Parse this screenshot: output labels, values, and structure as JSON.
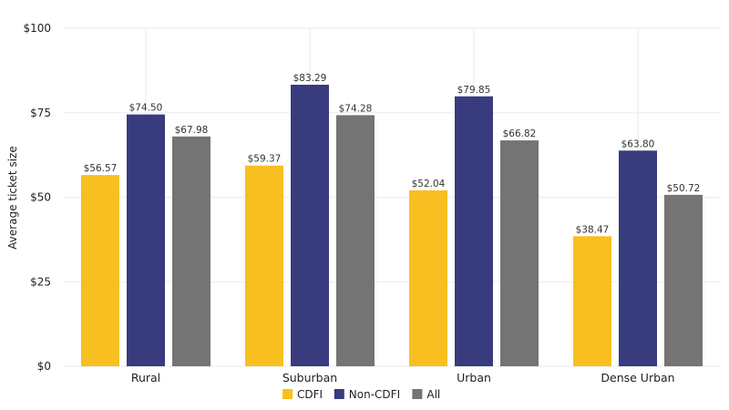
{
  "chart_data": {
    "type": "bar",
    "title": "",
    "xlabel": "",
    "ylabel": "Average ticket size",
    "categories": [
      "Rural",
      "Suburban",
      "Urban",
      "Dense Urban"
    ],
    "series": [
      {
        "name": "CDFI",
        "color": "#f8bf21",
        "values": [
          56.57,
          59.37,
          52.04,
          38.47
        ],
        "labels": [
          "$56.57",
          "$59.37",
          "$52.04",
          "$38.47"
        ]
      },
      {
        "name": "Non-CDFI",
        "color": "#383b7e",
        "values": [
          74.5,
          83.29,
          79.85,
          63.8
        ],
        "labels": [
          "$74.50",
          "$83.29",
          "$79.85",
          "$63.80"
        ]
      },
      {
        "name": "All",
        "color": "#747474",
        "values": [
          67.98,
          74.28,
          66.82,
          50.72
        ],
        "labels": [
          "$67.98",
          "$74.28",
          "$66.82",
          "$50.72"
        ]
      }
    ],
    "ylim": [
      0,
      100
    ],
    "yticks": [
      0,
      25,
      50,
      75,
      100
    ],
    "ytick_labels": [
      "$0",
      "$25",
      "$50",
      "$75",
      "$100"
    ],
    "grid": true,
    "legend_position": "bottom"
  }
}
